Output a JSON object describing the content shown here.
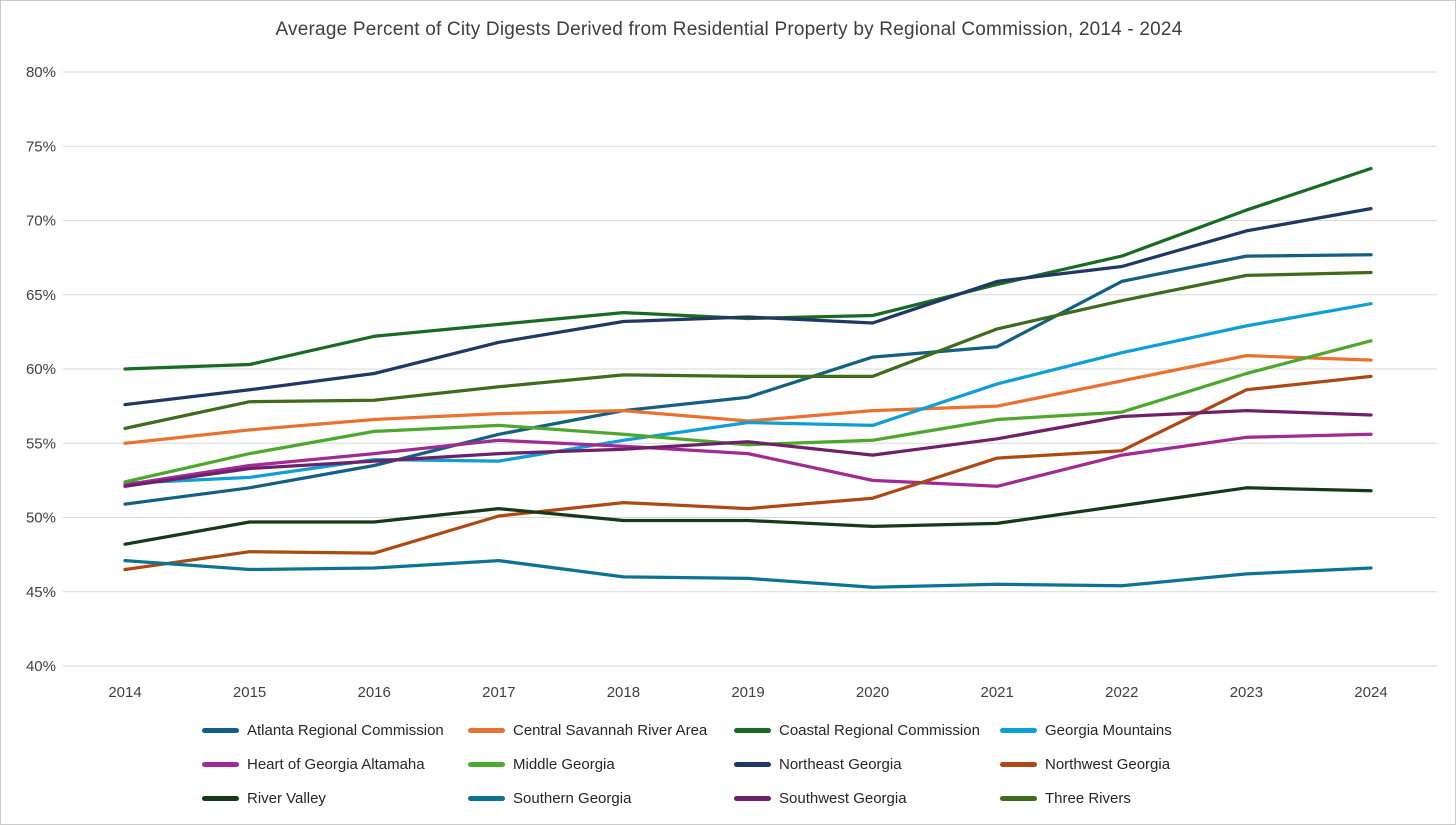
{
  "chart_data": {
    "type": "line",
    "title": "Average Percent of City Digests Derived from Residential Property by Regional Commission, 2014 - 2024",
    "xlabel": "",
    "ylabel": "",
    "x": [
      "2014",
      "2015",
      "2016",
      "2017",
      "2018",
      "2019",
      "2020",
      "2021",
      "2022",
      "2023",
      "2024"
    ],
    "y_ticks": [
      "80%",
      "75%",
      "70%",
      "65%",
      "60%",
      "55%",
      "50%",
      "45%",
      "40%"
    ],
    "ylim": [
      40,
      80
    ],
    "y_tick_step": 5,
    "grid": true,
    "legend_position": "bottom",
    "gridline_color": "#d9d9d9",
    "axis_label_color": "#404040",
    "series": [
      {
        "name": "Atlanta Regional Commission",
        "color": "#156082",
        "values": [
          50.9,
          52.0,
          53.5,
          55.6,
          57.2,
          58.1,
          60.8,
          61.5,
          65.9,
          67.6,
          67.7
        ]
      },
      {
        "name": "Central Savannah River Area",
        "color": "#E97132",
        "values": [
          55.0,
          55.9,
          56.6,
          57.0,
          57.2,
          56.5,
          57.2,
          57.5,
          59.2,
          60.9,
          60.6
        ]
      },
      {
        "name": "Coastal Regional Commission",
        "color": "#196B24",
        "values": [
          60.0,
          60.3,
          62.2,
          63.0,
          63.8,
          63.4,
          63.6,
          65.7,
          67.6,
          70.7,
          73.5
        ]
      },
      {
        "name": "Georgia Mountains",
        "color": "#0F9ED5",
        "values": [
          52.3,
          52.7,
          53.9,
          53.8,
          55.2,
          56.4,
          56.2,
          59.0,
          61.1,
          62.9,
          64.4
        ]
      },
      {
        "name": "Heart of Georgia Altamaha",
        "color": "#A02B93",
        "values": [
          52.2,
          53.5,
          54.3,
          55.2,
          54.8,
          54.3,
          52.5,
          52.1,
          54.2,
          55.4,
          55.6
        ]
      },
      {
        "name": "Middle Georgia",
        "color": "#4EA72E",
        "values": [
          52.4,
          54.3,
          55.8,
          56.2,
          55.6,
          54.9,
          55.2,
          56.6,
          57.1,
          59.7,
          61.9
        ]
      },
      {
        "name": "Northeast Georgia",
        "color": "#1F3864",
        "values": [
          57.6,
          58.6,
          59.7,
          61.8,
          63.2,
          63.5,
          63.1,
          65.9,
          66.9,
          69.3,
          70.8
        ]
      },
      {
        "name": "Northwest Georgia",
        "color": "#AC4A15",
        "values": [
          46.5,
          47.7,
          47.6,
          50.1,
          51.0,
          50.6,
          51.3,
          54.0,
          54.5,
          58.6,
          59.5
        ]
      },
      {
        "name": "River Valley",
        "color": "#163A17",
        "values": [
          48.2,
          49.7,
          49.7,
          50.6,
          49.8,
          49.8,
          49.4,
          49.6,
          50.8,
          52.0,
          51.8
        ]
      },
      {
        "name": "Southern Georgia",
        "color": "#0E7393",
        "values": [
          47.1,
          46.5,
          46.6,
          47.1,
          46.0,
          45.9,
          45.3,
          45.5,
          45.4,
          46.2,
          46.6
        ]
      },
      {
        "name": "Southwest Georgia",
        "color": "#6E2069",
        "values": [
          52.1,
          53.3,
          53.8,
          54.3,
          54.6,
          55.1,
          54.2,
          55.3,
          56.8,
          57.2,
          56.9
        ]
      },
      {
        "name": "Three Rivers",
        "color": "#3E6B1C",
        "values": [
          56.0,
          57.8,
          57.9,
          58.8,
          59.6,
          59.5,
          59.5,
          62.7,
          64.6,
          66.3,
          66.5
        ]
      }
    ]
  }
}
